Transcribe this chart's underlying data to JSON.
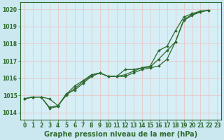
{
  "title": "Graphe pression niveau de la mer (hPa)",
  "background_color": "#cbe8f0",
  "grid_color": "#e8c8c8",
  "plot_bg_color": "#d6eef5",
  "line_color": "#2d6a2d",
  "xlim": [
    -0.5,
    23.5
  ],
  "ylim": [
    1013.6,
    1020.4
  ],
  "yticks": [
    1014,
    1015,
    1016,
    1017,
    1018,
    1019,
    1020
  ],
  "xticks": [
    0,
    1,
    2,
    3,
    4,
    5,
    6,
    7,
    8,
    9,
    10,
    11,
    12,
    13,
    14,
    15,
    16,
    17,
    18,
    19,
    20,
    21,
    22,
    23
  ],
  "series": [
    {
      "x": [
        0,
        1,
        2,
        3,
        4,
        5,
        6,
        7,
        8,
        9,
        10,
        11,
        12,
        13,
        14,
        15,
        16,
        17,
        18,
        19,
        20,
        21,
        22
      ],
      "y": [
        1014.8,
        1014.9,
        1014.9,
        1014.8,
        1014.4,
        1015.0,
        1015.4,
        1015.8,
        1016.15,
        1016.3,
        1016.1,
        1016.1,
        1016.1,
        1016.3,
        1016.5,
        1016.6,
        1016.7,
        1017.1,
        1018.1,
        1019.35,
        1019.65,
        1019.85,
        1019.95
      ]
    },
    {
      "x": [
        0,
        1,
        2,
        3,
        4,
        5,
        6,
        7,
        8,
        9,
        10,
        11,
        12,
        13,
        14,
        15,
        16,
        17,
        18,
        19,
        20,
        21,
        22
      ],
      "y": [
        1014.8,
        1014.9,
        1014.9,
        1014.3,
        1014.4,
        1015.05,
        1015.55,
        1015.85,
        1016.2,
        1016.3,
        1016.1,
        1016.1,
        1016.5,
        1016.5,
        1016.6,
        1016.65,
        1017.1,
        1017.6,
        1018.1,
        1019.4,
        1019.7,
        1019.85,
        1019.95
      ]
    },
    {
      "x": [
        0,
        1,
        2,
        3,
        4,
        5,
        6,
        7,
        8,
        9,
        10,
        11,
        12,
        13,
        14,
        15,
        16,
        17,
        18,
        19,
        20,
        21,
        22
      ],
      "y": [
        1014.8,
        1014.9,
        1014.9,
        1014.25,
        1014.35,
        1015.1,
        1015.3,
        1015.7,
        1016.1,
        1016.3,
        1016.1,
        1016.1,
        1016.2,
        1016.4,
        1016.6,
        1016.7,
        1017.6,
        1017.85,
        1018.75,
        1019.55,
        1019.75,
        1019.9,
        1019.95
      ]
    }
  ],
  "ylabel_fontsize": 5.5,
  "xlabel_fontsize": 7.0,
  "tick_fontsize": 5.5
}
